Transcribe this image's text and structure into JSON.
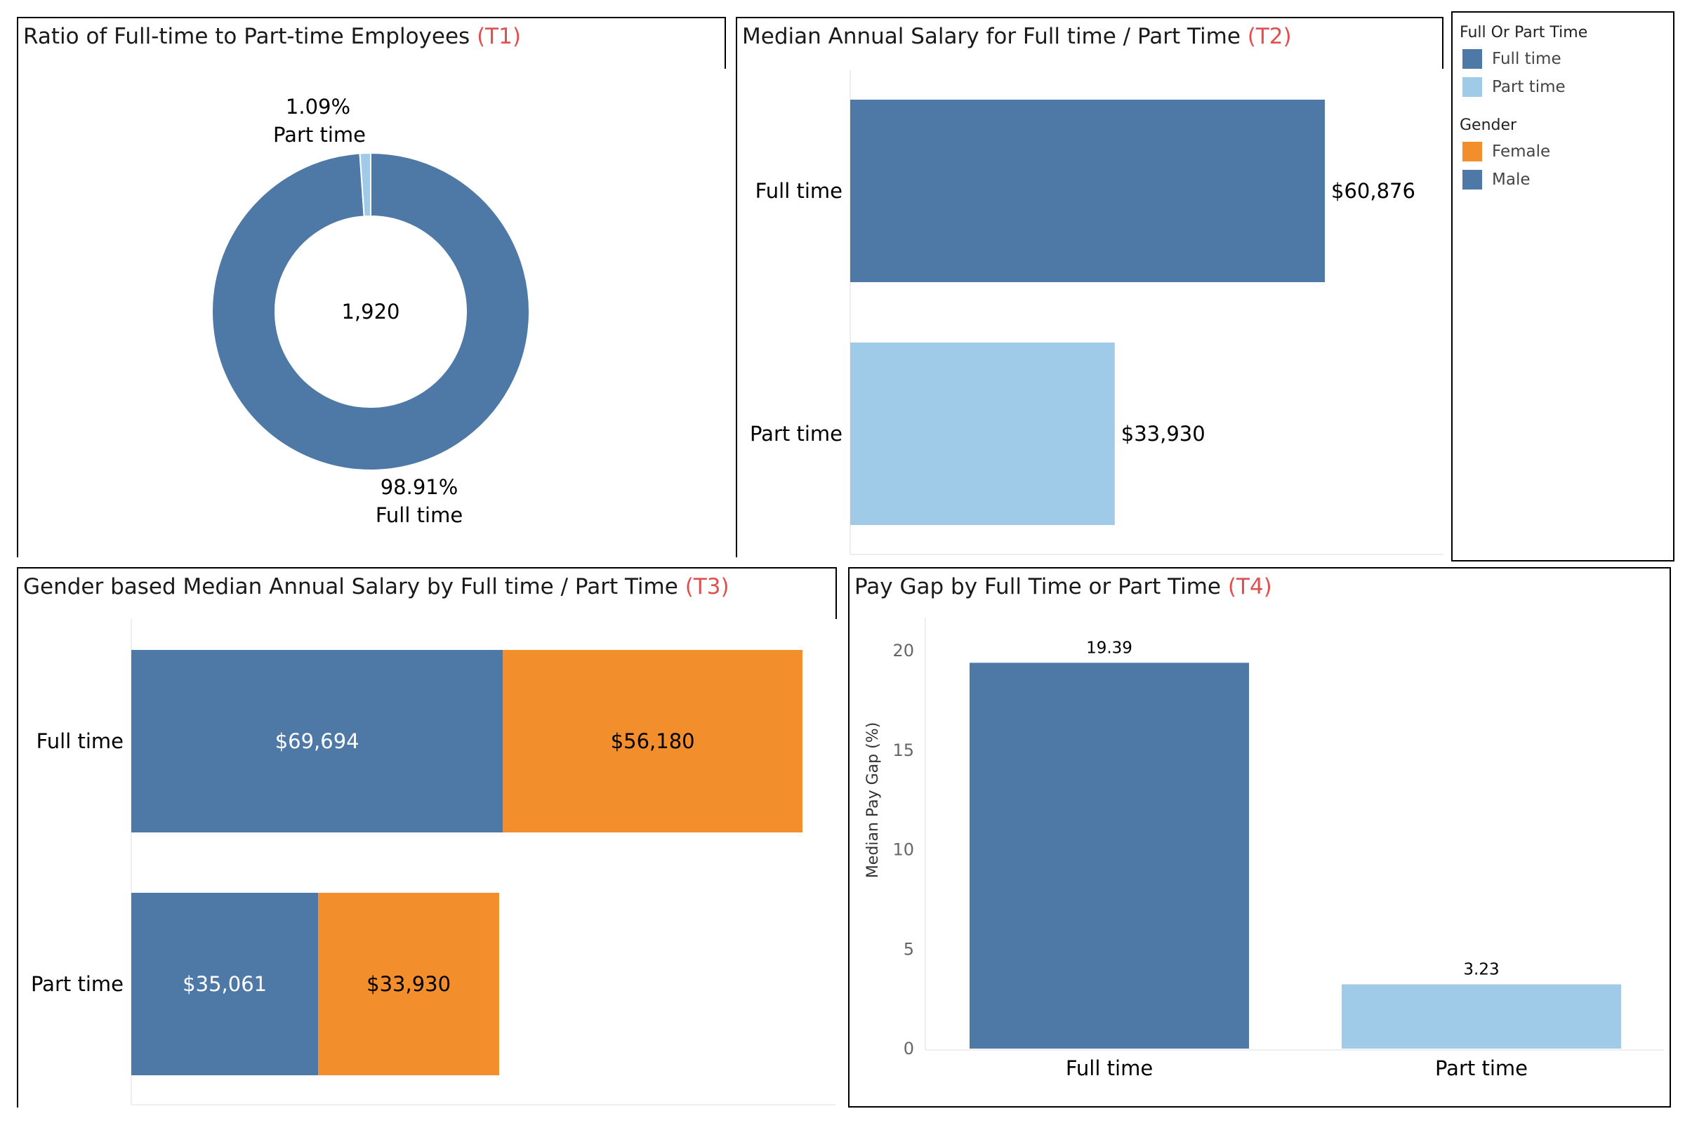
{
  "colors": {
    "full_time": "#4e79a7",
    "part_time": "#a0cbe8",
    "female": "#f28e2b",
    "male": "#4e79a7",
    "title_tag": "#e0504f"
  },
  "t1": {
    "title": "Ratio of Full-time to Part-time Employees",
    "tag": "(T1)"
  },
  "t2": {
    "title": "Median Annual Salary for Full time / Part Time",
    "tag": "(T2)"
  },
  "t3": {
    "title": "Gender based Median Annual Salary by Full time / Part Time",
    "tag": "(T3)"
  },
  "t4": {
    "title": "Pay Gap by Full Time or Part Time",
    "tag": "(T4)"
  },
  "legend": {
    "group1_title": "Full Or Part Time",
    "group1_items": [
      "Full time",
      "Part time"
    ],
    "group2_title": "Gender",
    "group2_items": [
      "Female",
      "Male"
    ]
  },
  "chart_data": [
    {
      "id": "t1",
      "type": "pie",
      "title": "Ratio of Full-time to Part-time Employees (T1)",
      "center_label": "1,920",
      "slices": [
        {
          "name": "Full time",
          "value": 98.91,
          "label": "98.91%"
        },
        {
          "name": "Part time",
          "value": 1.09,
          "label": "1.09%"
        }
      ]
    },
    {
      "id": "t2",
      "type": "bar",
      "title": "Median Annual Salary for Full time / Part Time (T2)",
      "orientation": "horizontal",
      "categories": [
        "Full time",
        "Part time"
      ],
      "values": [
        60876,
        33930
      ],
      "labels": [
        "$60,876",
        "$33,930"
      ]
    },
    {
      "id": "t3",
      "type": "bar",
      "title": "Gender based Median Annual Salary by Full time / Part Time (T3)",
      "orientation": "horizontal",
      "stacked": true,
      "categories": [
        "Full time",
        "Part time"
      ],
      "series": [
        {
          "name": "Male",
          "values": [
            69694,
            35061
          ],
          "labels": [
            "$69,694",
            "$35,061"
          ]
        },
        {
          "name": "Female",
          "values": [
            56180,
            33930
          ],
          "labels": [
            "$56,180",
            "$33,930"
          ]
        }
      ]
    },
    {
      "id": "t4",
      "type": "bar",
      "title": "Pay Gap by Full Time or Part Time (T4)",
      "categories": [
        "Full time",
        "Part time"
      ],
      "values": [
        19.39,
        3.23
      ],
      "labels": [
        "19.39",
        "3.23"
      ],
      "ylabel": "Median Pay Gap (%)",
      "ylim": [
        0,
        20
      ],
      "yticks": [
        "0",
        "5",
        "10",
        "15",
        "20"
      ]
    }
  ]
}
